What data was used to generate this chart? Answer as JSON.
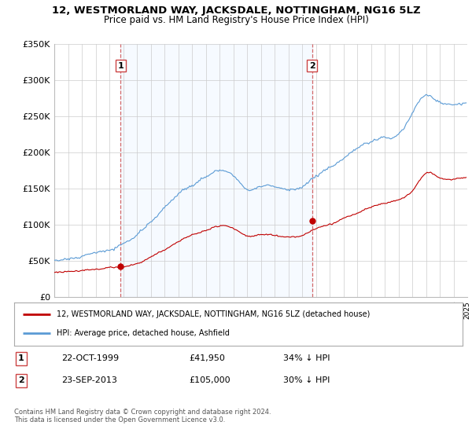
{
  "title": "12, WESTMORLAND WAY, JACKSDALE, NOTTINGHAM, NG16 5LZ",
  "subtitle": "Price paid vs. HM Land Registry's House Price Index (HPI)",
  "hpi_color": "#5b9bd5",
  "price_color": "#c00000",
  "vline_color": "#cc4444",
  "fill_color": "#ddeeff",
  "bg_color": "#ffffff",
  "grid_color": "#cccccc",
  "ylim": [
    0,
    350000
  ],
  "yticks": [
    0,
    50000,
    100000,
    150000,
    200000,
    250000,
    300000,
    350000
  ],
  "ytick_labels": [
    "£0",
    "£50K",
    "£100K",
    "£150K",
    "£200K",
    "£250K",
    "£300K",
    "£350K"
  ],
  "sale1_date": 1999.81,
  "sale1_price": 41950,
  "sale1_label": "1",
  "sale2_date": 2013.73,
  "sale2_price": 105000,
  "sale2_label": "2",
  "legend_line1": "12, WESTMORLAND WAY, JACKSDALE, NOTTINGHAM, NG16 5LZ (detached house)",
  "legend_line2": "HPI: Average price, detached house, Ashfield",
  "table_row1": [
    "1",
    "22-OCT-1999",
    "£41,950",
    "34% ↓ HPI"
  ],
  "table_row2": [
    "2",
    "23-SEP-2013",
    "£105,000",
    "30% ↓ HPI"
  ],
  "footer": "Contains HM Land Registry data © Crown copyright and database right 2024.\nThis data is licensed under the Open Government Licence v3.0."
}
